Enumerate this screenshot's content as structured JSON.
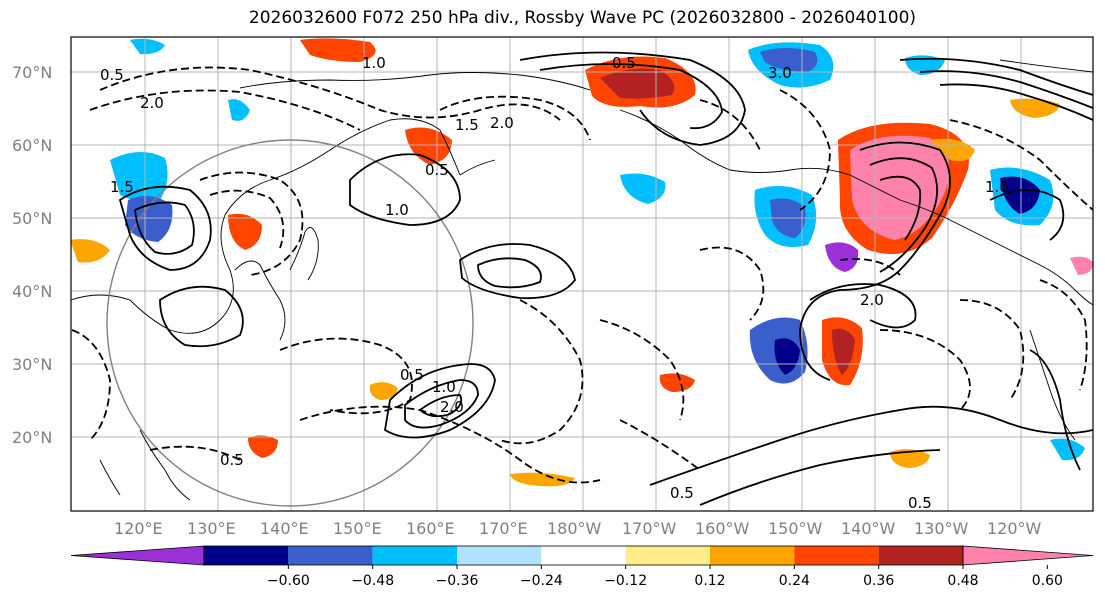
{
  "title": "2026032600 F072 250 hPa div., Rossby Wave PC (2026032800 - 2026040100)",
  "lat_labels": [
    "70°N",
    "60°N",
    "50°N",
    "40°N",
    "30°N",
    "20°N"
  ],
  "lon_labels": [
    "120°E",
    "130°E",
    "140°E",
    "150°E",
    "160°E",
    "170°E",
    "180°W",
    "170°W",
    "160°W",
    "150°W",
    "140°W",
    "130°W",
    "120°W"
  ],
  "colorbar": {
    "ticks": [
      "−0.60",
      "−0.48",
      "−0.36",
      "−0.24",
      "−0.12",
      "0.12",
      "0.24",
      "0.36",
      "0.48",
      "0.60"
    ],
    "colors": [
      "#9b30d8",
      "#00008b",
      "#3a5fcd",
      "#00bfff",
      "#b0e2ff",
      "#ffffff",
      "#ffec8b",
      "#ffa500",
      "#ff4500",
      "#b22222",
      "#ff82ab"
    ]
  },
  "contour_labels": [
    "0.5",
    "1.0",
    "2.0",
    "3.0",
    "1.5",
    "0.5",
    "1.0",
    "2.0",
    "0.5",
    "1.5",
    "0.5",
    "1.0",
    "2.0",
    "0.5",
    "0.5",
    "1.0",
    "2.0",
    "0.5"
  ],
  "colors": {
    "grid": "#b4b4b4",
    "circle": "#808080",
    "axis_text": "#808080"
  }
}
